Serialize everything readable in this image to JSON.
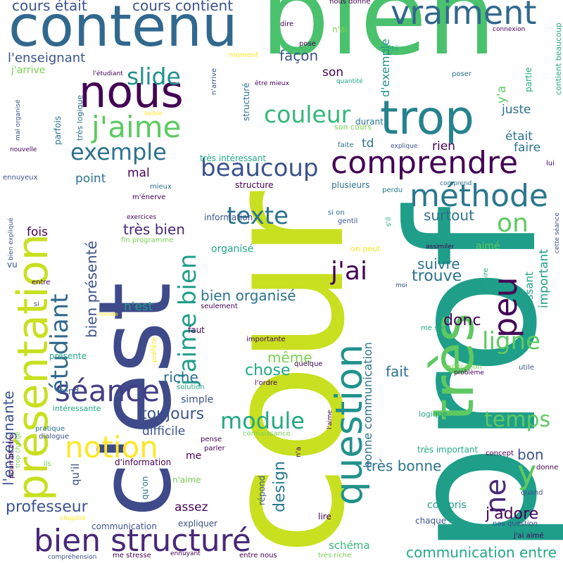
{
  "cloud": {
    "words": [
      {
        "text": "prof",
        "color": "#1f9e89"
      },
      {
        "text": "cour",
        "color": "#c8e020"
      },
      {
        "text": "bien",
        "color": "#4ac16d"
      },
      {
        "text": "c'est",
        "color": "#3e4a89"
      },
      {
        "text": "contenu",
        "color": "#31688e"
      },
      {
        "text": "présentation",
        "color": "#c8e020"
      },
      {
        "text": "nous",
        "color": "#440154"
      },
      {
        "text": "trop",
        "color": "#26828e"
      },
      {
        "text": "vraiment",
        "color": "#31688e"
      },
      {
        "text": "très",
        "color": "#5ec962"
      },
      {
        "text": "question",
        "color": "#21918c"
      },
      {
        "text": "comprendre",
        "color": "#440154"
      },
      {
        "text": "méthode",
        "color": "#2a788e"
      },
      {
        "text": "j'aime",
        "color": "#5ec962"
      },
      {
        "text": "bien structuré",
        "color": "#482878"
      },
      {
        "text": "séance",
        "color": "#433e85"
      },
      {
        "text": "j'aime bien",
        "color": "#1f9e89"
      },
      {
        "text": "étudiant",
        "color": "#31688e"
      },
      {
        "text": "notion",
        "color": "#fde725"
      },
      {
        "text": "beaucoup",
        "color": "#3b528b"
      },
      {
        "text": "couleur",
        "color": "#35b779"
      },
      {
        "text": "slide",
        "color": "#21918c"
      },
      {
        "text": "texte",
        "color": "#2c728e"
      },
      {
        "text": "exemple",
        "color": "#2c728e"
      },
      {
        "text": "module",
        "color": "#22a884"
      },
      {
        "text": "peu",
        "color": "#440154"
      },
      {
        "text": "ligne",
        "color": "#5ec962"
      },
      {
        "text": "temps",
        "color": "#5ec962"
      },
      {
        "text": "j'ai",
        "color": "#440154"
      },
      {
        "text": "on",
        "color": "#5ec962"
      },
      {
        "text": "ne",
        "color": "#482878"
      },
      {
        "text": "y",
        "color": "#5ec962"
      },
      {
        "text": "l'enseignante",
        "color": "#3b528b"
      },
      {
        "text": "bien organisé",
        "color": "#2c728e"
      },
      {
        "text": "bien présenté",
        "color": "#3b528b"
      },
      {
        "text": "professeur",
        "color": "#3b528b"
      },
      {
        "text": "toujours",
        "color": "#3b528b"
      },
      {
        "text": "communication entre",
        "color": "#22a884"
      },
      {
        "text": "bonne communication",
        "color": "#2c728e"
      },
      {
        "text": "cours contient",
        "color": "#3b528b"
      },
      {
        "text": "cours était",
        "color": "#3b528b"
      },
      {
        "text": "l'enseignant",
        "color": "#3b528b"
      },
      {
        "text": "très bien",
        "color": "#482878"
      },
      {
        "text": "très bonne",
        "color": "#2c728e"
      },
      {
        "text": "trouve",
        "color": "#2c728e"
      },
      {
        "text": "suivre",
        "color": "#2c728e"
      },
      {
        "text": "donc",
        "color": "#440154"
      },
      {
        "text": "chose",
        "color": "#22a884"
      },
      {
        "text": "même",
        "color": "#7ad151"
      },
      {
        "text": "riche",
        "color": "#2c728e"
      },
      {
        "text": "design",
        "color": "#2a788e"
      },
      {
        "text": "d'exemple",
        "color": "#21918c"
      },
      {
        "text": "surtout",
        "color": "#2c728e"
      },
      {
        "text": "important",
        "color": "#1f9e89"
      },
      {
        "text": "intéressant",
        "color": "#1f9e89"
      },
      {
        "text": "j'adore",
        "color": "#440154"
      },
      {
        "text": "bon",
        "color": "#3b528b"
      },
      {
        "text": "fait",
        "color": "#2c728e"
      },
      {
        "text": "aimé",
        "color": "#5ec962"
      },
      {
        "text": "y'a",
        "color": "#5ec962"
      },
      {
        "text": "juste",
        "color": "#2c728e"
      },
      {
        "text": "était",
        "color": "#2c728e"
      },
      {
        "text": "faire",
        "color": "#2c728e"
      },
      {
        "text": "rien",
        "color": "#440154"
      },
      {
        "text": "td",
        "color": "#2c728e"
      },
      {
        "text": "son",
        "color": "#440154"
      },
      {
        "text": "façon",
        "color": "#3b528b"
      },
      {
        "text": "point",
        "color": "#2c728e"
      },
      {
        "text": "mal",
        "color": "#440154"
      },
      {
        "text": "fois",
        "color": "#440154"
      },
      {
        "text": "n'est",
        "color": "#1f9e89"
      },
      {
        "text": "assez",
        "color": "#440154"
      },
      {
        "text": "difficile",
        "color": "#3b528b"
      },
      {
        "text": "simple",
        "color": "#3b528b"
      },
      {
        "text": "qu'il",
        "color": "#3b528b"
      },
      {
        "text": "me",
        "color": "#440154"
      },
      {
        "text": "j'arrive",
        "color": "#7ad151"
      },
      {
        "text": "schéma",
        "color": "#35b779"
      },
      {
        "text": "compris",
        "color": "#1f9e89"
      },
      {
        "text": "chaque",
        "color": "#3b528b"
      },
      {
        "text": "expliquer",
        "color": "#3b528b"
      },
      {
        "text": "communication",
        "color": "#3b528b"
      },
      {
        "text": "lire",
        "color": "#440154"
      },
      {
        "text": "faut",
        "color": "#440154"
      },
      {
        "text": "structure",
        "color": "#440154"
      },
      {
        "text": "plusieurs",
        "color": "#2c728e"
      },
      {
        "text": "information",
        "color": "#3b528b"
      },
      {
        "text": "organisé",
        "color": "#22a884"
      },
      {
        "text": "structuré",
        "color": "#2c728e"
      },
      {
        "text": "durant",
        "color": "#2c728e"
      },
      {
        "text": "très intéressant",
        "color": "#22a884"
      },
      {
        "text": "mieux",
        "color": "#2c728e"
      },
      {
        "text": "parfois",
        "color": "#2c728e"
      },
      {
        "text": "partie",
        "color": "#22a884"
      },
      {
        "text": "logique",
        "color": "#22a884"
      },
      {
        "text": "très important",
        "color": "#22a884"
      },
      {
        "text": "répond",
        "color": "#3b528b"
      },
      {
        "text": "présente",
        "color": "#22a884"
      },
      {
        "text": "vu",
        "color": "#3b528b"
      },
      {
        "text": "seulement",
        "color": "#440154"
      },
      {
        "text": "quelque",
        "color": "#440154"
      },
      {
        "text": "l'ordre",
        "color": "#440154"
      },
      {
        "text": "solution",
        "color": "#22a884"
      },
      {
        "text": "importante",
        "color": "#440154"
      },
      {
        "text": "rend",
        "color": "#3b528b"
      },
      {
        "text": "d'information",
        "color": "#440154"
      },
      {
        "text": "n'aime",
        "color": "#7ad151"
      },
      {
        "text": "qu'on",
        "color": "#2c728e"
      },
      {
        "text": "connaissance",
        "color": "#7ad151"
      },
      {
        "text": "pense",
        "color": "#440154"
      },
      {
        "text": "parler",
        "color": "#440154"
      },
      {
        "text": "concept",
        "color": "#440154"
      },
      {
        "text": "quand",
        "color": "#3b528b"
      },
      {
        "text": "donne",
        "color": "#440154"
      },
      {
        "text": "nos question",
        "color": "#3b528b"
      },
      {
        "text": "j'ai aimé",
        "color": "#440154"
      },
      {
        "text": "entre nous",
        "color": "#440154"
      },
      {
        "text": "très riche",
        "color": "#7ad151"
      },
      {
        "text": "me stresse",
        "color": "#440154"
      },
      {
        "text": "ennuyant",
        "color": "#440154"
      },
      {
        "text": "compréhension",
        "color": "#3b528b"
      },
      {
        "text": "nous donne",
        "color": "#440154"
      },
      {
        "text": "dire",
        "color": "#440154"
      },
      {
        "text": "n'ai",
        "color": "#7ad151"
      },
      {
        "text": "pose",
        "color": "#440154"
      },
      {
        "text": "quantité",
        "color": "#22a884"
      },
      {
        "text": "être mieux",
        "color": "#440154"
      },
      {
        "text": "son cours",
        "color": "#7ad151"
      },
      {
        "text": "faite",
        "color": "#2c728e"
      },
      {
        "text": "explique",
        "color": "#3b528b"
      },
      {
        "text": "comprend",
        "color": "#2c728e"
      },
      {
        "text": "perdu",
        "color": "#2c728e"
      },
      {
        "text": "gentil",
        "color": "#3b528b"
      },
      {
        "text": "si on",
        "color": "#2c728e"
      },
      {
        "text": "s'il",
        "color": "#22a884"
      },
      {
        "text": "on peut",
        "color": "#fde725"
      },
      {
        "text": "assimiler",
        "color": "#440154"
      },
      {
        "text": "cette séance",
        "color": "#3b528b"
      },
      {
        "text": "claire",
        "color": "#22a884"
      },
      {
        "text": "moi",
        "color": "#3b528b"
      },
      {
        "text": "me sens",
        "color": "#22a884"
      },
      {
        "text": "explication",
        "color": "#7ad151"
      },
      {
        "text": "problème",
        "color": "#440154"
      },
      {
        "text": "utile",
        "color": "#3b528b"
      },
      {
        "text": "connexion",
        "color": "#440154"
      },
      {
        "text": "côté",
        "color": "#22a884"
      },
      {
        "text": "poser",
        "color": "#2c728e"
      },
      {
        "text": "contient beaucoup",
        "color": "#22a884"
      },
      {
        "text": "lui",
        "color": "#440154"
      },
      {
        "text": "moment",
        "color": "#fde725"
      },
      {
        "text": "n'arrive",
        "color": "#3b528b"
      },
      {
        "text": "l'étudiant",
        "color": "#440154"
      },
      {
        "text": "très logique",
        "color": "#2c728e"
      },
      {
        "text": "mal organisé",
        "color": "#3b528b"
      },
      {
        "text": "lisible",
        "color": "#fde725"
      },
      {
        "text": "nouvelle",
        "color": "#440154"
      },
      {
        "text": "ennuyeux",
        "color": "#3b528b"
      },
      {
        "text": "m'énerve",
        "color": "#440154"
      },
      {
        "text": "exercices",
        "color": "#440154"
      },
      {
        "text": "fin programme",
        "color": "#7ad151"
      },
      {
        "text": "bien expliqué",
        "color": "#3b528b"
      },
      {
        "text": "entre",
        "color": "#440154"
      },
      {
        "text": "si",
        "color": "#3b528b"
      },
      {
        "text": "monde",
        "color": "#fde725"
      },
      {
        "text": "préfère",
        "color": "#fde725"
      },
      {
        "text": "intéressante",
        "color": "#22a884"
      },
      {
        "text": "pratique",
        "color": "#2c728e"
      },
      {
        "text": "dialogue",
        "color": "#3b528b"
      },
      {
        "text": "pourrait être",
        "color": "#440154"
      },
      {
        "text": "trop chargé",
        "color": "#7ad151"
      },
      {
        "text": "ils",
        "color": "#7ad151"
      },
      {
        "text": "chapitre",
        "color": "#fde725"
      },
      {
        "text": "n'a",
        "color": "#440154"
      },
      {
        "text": "l'aime",
        "color": "#440154"
      }
    ]
  }
}
